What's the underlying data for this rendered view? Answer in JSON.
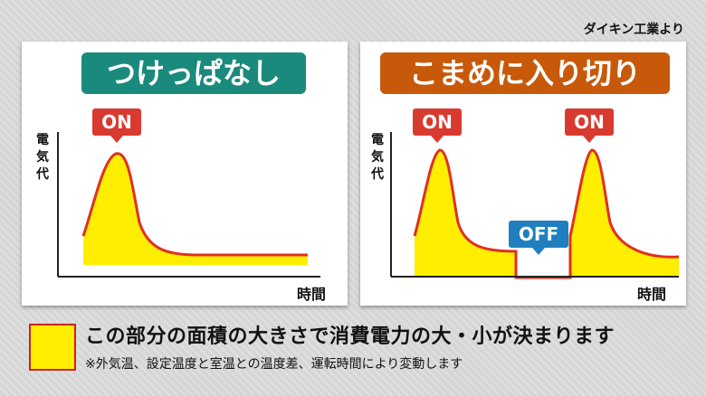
{
  "source": "ダイキン工業より",
  "panels": [
    {
      "title": "つけっぱなし",
      "ylabel": "電気代",
      "xlabel": "時間",
      "tags": [
        "ON"
      ]
    },
    {
      "title": "こまめに入り切り",
      "ylabel": "電気代",
      "xlabel": "時間",
      "tags": [
        "ON",
        "OFF",
        "ON"
      ]
    }
  ],
  "legend": {
    "main": "この部分の面積の大きさで消費電力の大・小が決まります",
    "note": "※外気温、設定温度と室温との温度差、運転時間により変動します"
  },
  "colors": {
    "fill": "#ffee00",
    "line": "#e03020",
    "on": "#d93a30",
    "off": "#1f7fbf",
    "title_left": "#1a8a7d",
    "title_right": "#c8590a"
  }
}
